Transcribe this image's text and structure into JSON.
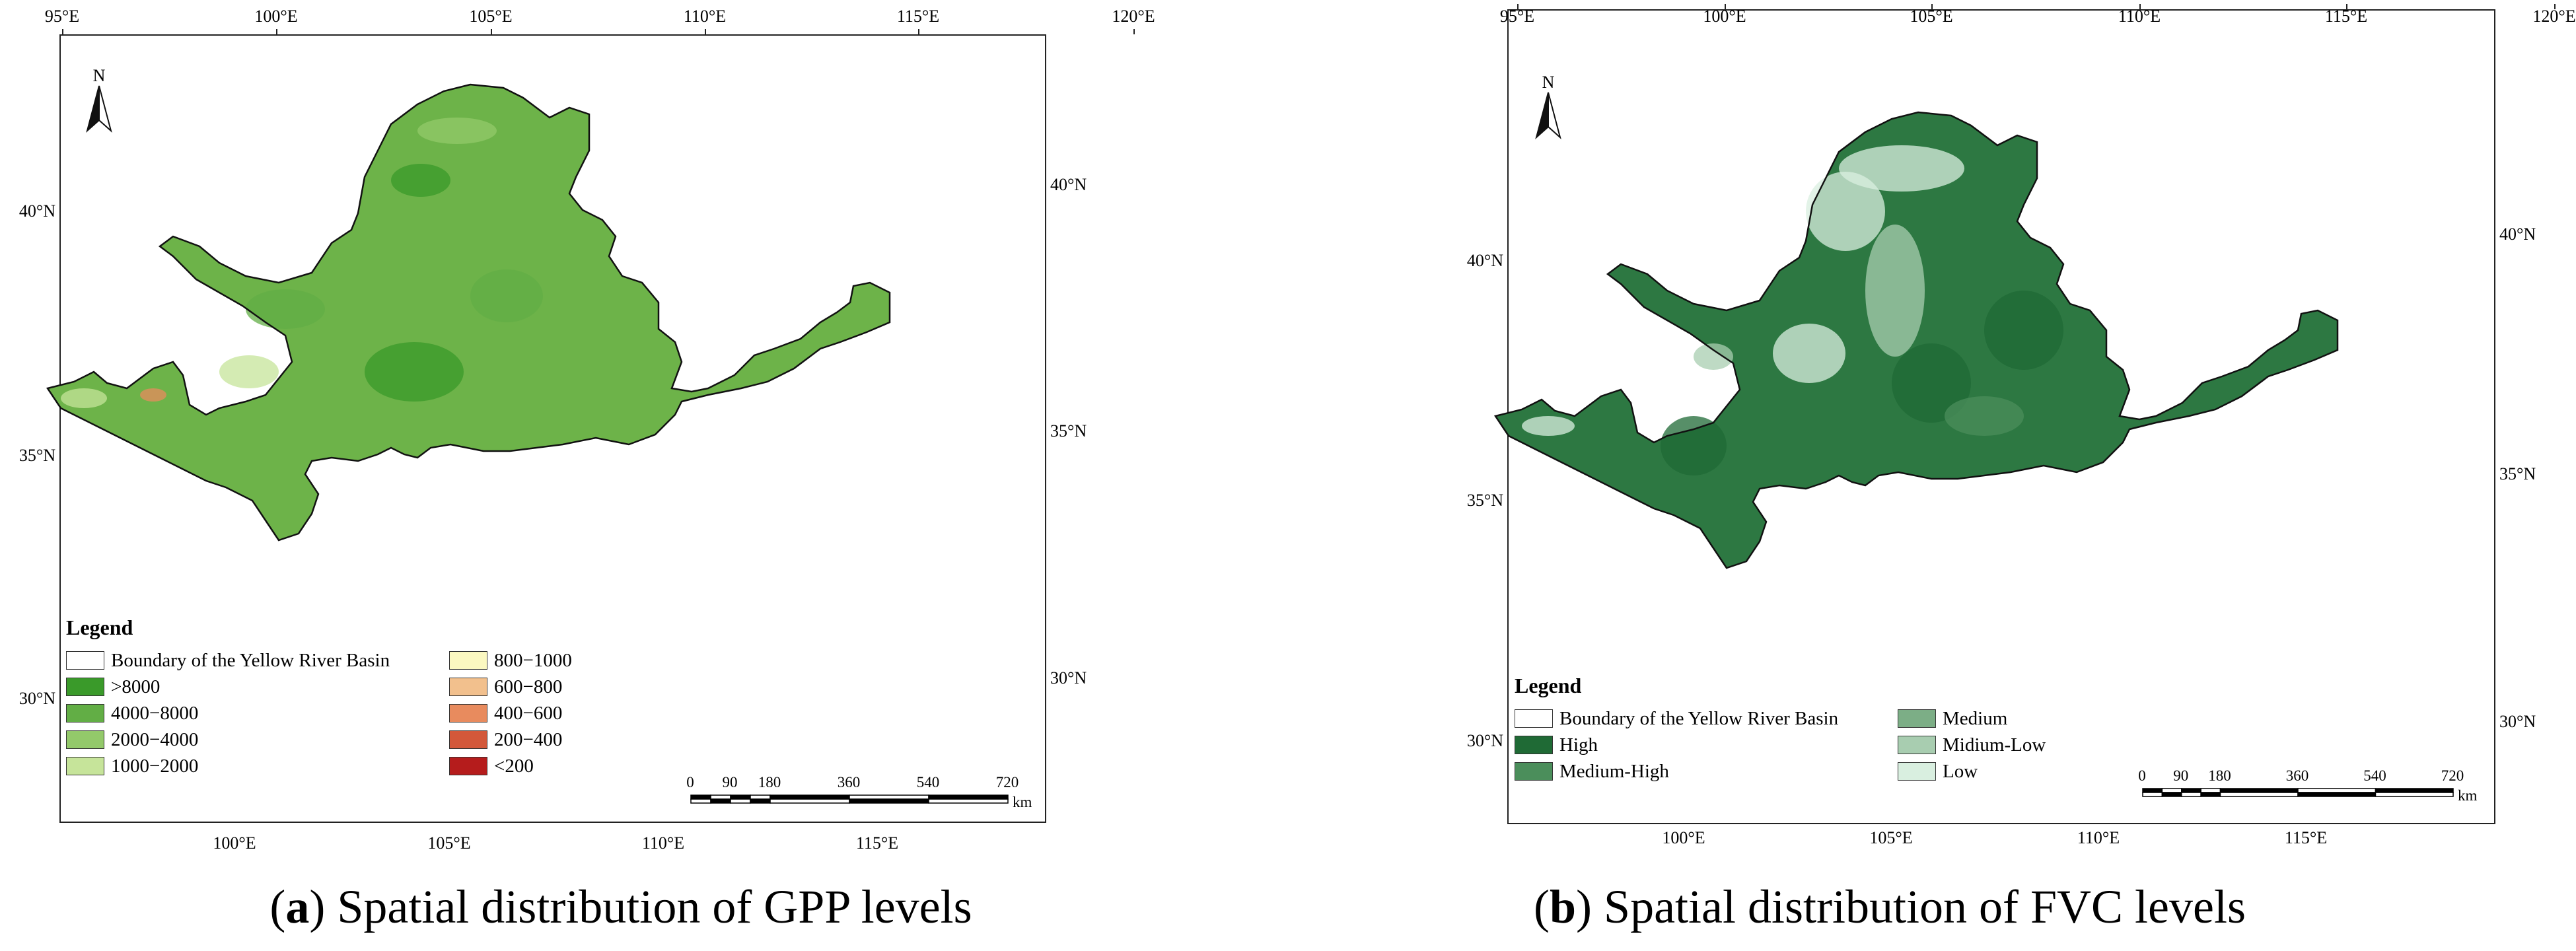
{
  "panels": [
    {
      "id": "a",
      "lon_ticks": [
        "95°E",
        "100°E",
        "105°E",
        "110°E",
        "115°E",
        "120°E"
      ],
      "bottom_lon_ticks": [
        "100°E",
        "105°E",
        "110°E",
        "115°E"
      ],
      "lat_ticks_left": [
        "40°N",
        "35°N",
        "30°N"
      ],
      "lat_ticks_right": [
        "40°N",
        "35°N",
        "30°N"
      ],
      "north_label": "N",
      "legend": {
        "title": "Legend",
        "items": [
          {
            "label": "Boundary of the Yellow River Basin",
            "color": "#ffffff"
          },
          {
            "label": ">8000",
            "color": "#3a9a2a"
          },
          {
            "label": "4000−8000",
            "color": "#62ae45"
          },
          {
            "label": "2000−4000",
            "color": "#93c96a"
          },
          {
            "label": "1000−2000",
            "color": "#c6e49a"
          },
          {
            "label": "800−1000",
            "color": "#fbf8c1"
          },
          {
            "label": "600−800",
            "color": "#f2c08d"
          },
          {
            "label": "400−600",
            "color": "#e88b5e"
          },
          {
            "label": "200−400",
            "color": "#d3583a"
          },
          {
            "label": "<200",
            "color": "#b51c1c"
          }
        ]
      },
      "scale": {
        "labels": [
          "0",
          "90",
          "180",
          "360",
          "540",
          "720"
        ],
        "unit": "km"
      },
      "caption": {
        "letter": "a",
        "text": "Spatial distribution of GPP levels"
      },
      "fill": "#6db349"
    },
    {
      "id": "b",
      "lon_ticks": [
        "95°E",
        "100°E",
        "105°E",
        "110°E",
        "115°E",
        "120°E"
      ],
      "bottom_lon_ticks": [
        "100°E",
        "105°E",
        "110°E",
        "115°E"
      ],
      "lat_ticks_left": [
        "40°N",
        "35°N",
        "30°N"
      ],
      "lat_ticks_right": [
        "40°N",
        "35°N",
        "30°N"
      ],
      "north_label": "N",
      "legend": {
        "title": "Legend",
        "items": [
          {
            "label": "Boundary of the Yellow River Basin",
            "color": "#ffffff"
          },
          {
            "label": "High",
            "color": "#1f6a35"
          },
          {
            "label": "Medium-High",
            "color": "#4b8e5b"
          },
          {
            "label": "Medium",
            "color": "#7cae86"
          },
          {
            "label": "Midium-Low",
            "color": "#a8cdb0"
          },
          {
            "label": "Low",
            "color": "#d9efe0"
          }
        ]
      },
      "scale": {
        "labels": [
          "0",
          "90",
          "180",
          "360",
          "540",
          "720"
        ],
        "unit": "km"
      },
      "caption": {
        "letter": "b",
        "text": "Spatial distribution of FVC levels"
      },
      "fill": "#2d7842"
    }
  ]
}
